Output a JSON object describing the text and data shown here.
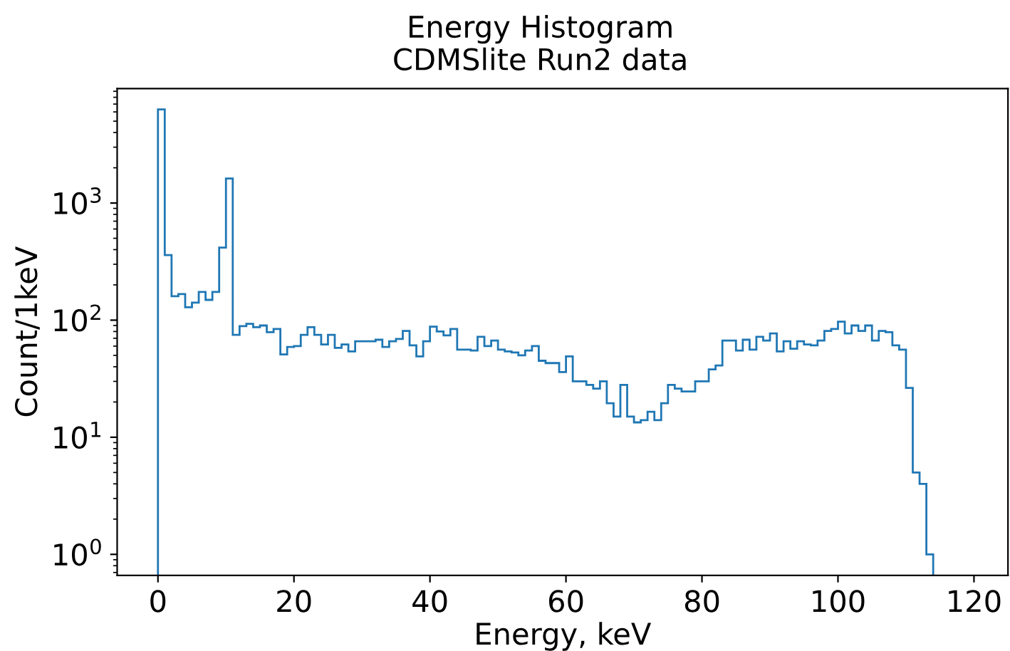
{
  "chart_data": {
    "type": "histogram",
    "title": "Energy Histogram",
    "subtitle": "CDMSlite Run2 data",
    "xlabel": "Energy, keV",
    "ylabel": "Count/1keV",
    "color": "#1f77b4",
    "log": "y",
    "grid": false,
    "legend": false,
    "bins": [
      0,
      1,
      2,
      3,
      4,
      5,
      6,
      7,
      8,
      9,
      10,
      11,
      12,
      13,
      14,
      15,
      16,
      17,
      18,
      19,
      20,
      21,
      22,
      23,
      24,
      25,
      26,
      27,
      28,
      29,
      30,
      31,
      32,
      33,
      34,
      35,
      36,
      37,
      38,
      39,
      40,
      41,
      42,
      43,
      44,
      45,
      46,
      47,
      48,
      49,
      50,
      51,
      52,
      53,
      54,
      55,
      56,
      57,
      58,
      59,
      60,
      61,
      62,
      63,
      64,
      65,
      66,
      67,
      68,
      69,
      70,
      71,
      72,
      73,
      74,
      75,
      76,
      77,
      78,
      79,
      80,
      81,
      82,
      83,
      84,
      85,
      86,
      87,
      88,
      89,
      90,
      91,
      92,
      93,
      94,
      95,
      96,
      97,
      98,
      99,
      100,
      101,
      102,
      103,
      104,
      105,
      106,
      107,
      108,
      109,
      110,
      111,
      112,
      113,
      114
    ],
    "values": [
      6300,
      359,
      160,
      167,
      129,
      141,
      174,
      149,
      174,
      416,
      1620,
      75,
      89,
      93,
      87,
      90,
      79,
      84,
      51,
      59,
      60,
      75,
      87,
      75,
      62,
      75,
      58,
      62,
      54,
      66,
      66,
      66,
      68,
      59,
      66,
      69,
      81,
      61,
      49,
      66,
      88,
      80,
      74,
      84,
      56,
      56,
      55,
      72,
      60,
      67,
      56,
      54,
      53,
      50,
      55,
      60,
      45,
      43,
      43,
      36,
      49,
      30,
      30,
      28,
      26,
      30,
      19.5,
      15,
      28,
      15,
      13.4,
      14,
      16.5,
      14,
      19.5,
      28,
      26,
      24.6,
      24.6,
      30,
      30,
      38,
      41,
      67,
      67,
      55,
      68,
      56,
      72,
      67,
      77,
      54,
      66,
      57,
      66,
      62,
      61,
      67,
      81,
      84,
      97,
      77,
      90,
      81,
      90,
      67,
      81,
      79,
      61,
      56,
      26.4,
      5,
      4,
      1
    ],
    "xlim": [
      -6,
      125
    ],
    "ylim": [
      0.66,
      9500
    ],
    "xticks": [
      0,
      20,
      40,
      60,
      80,
      100,
      120
    ],
    "yticks": [
      {
        "value": 1,
        "label": "10$^{0}$"
      },
      {
        "value": 10,
        "label": "10$^{1}$"
      },
      {
        "value": 100,
        "label": "10$^{2}$"
      },
      {
        "value": 1000,
        "label": "10$^{3}$"
      }
    ]
  }
}
